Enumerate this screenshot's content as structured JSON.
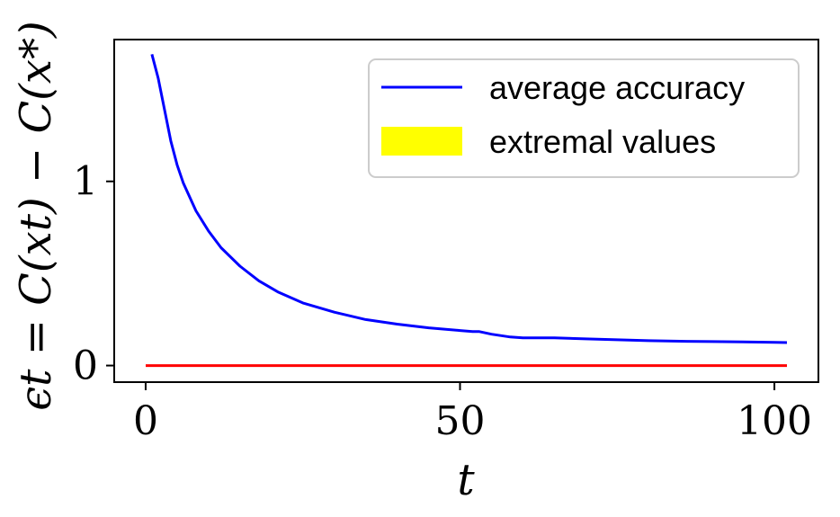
{
  "chart_data": {
    "type": "line",
    "xlabel": "t",
    "ylabel": "ϵt = C(xt) − C(x*)",
    "xlim": [
      -5,
      107
    ],
    "ylim": [
      -0.09,
      1.77
    ],
    "xticks": [
      0,
      50,
      100
    ],
    "xtick_labels": [
      "0",
      "50",
      "100"
    ],
    "yticks": [
      0,
      1
    ],
    "ytick_labels": [
      "0",
      "1"
    ],
    "grid": false,
    "legend_position": "top-right",
    "series": [
      {
        "name": "average accuracy",
        "color": "#0000ff",
        "x": [
          1,
          2,
          3,
          4,
          5,
          6,
          8,
          10,
          12,
          15,
          18,
          21,
          25,
          30,
          35,
          40,
          45,
          50,
          52,
          53,
          55,
          58,
          60,
          65,
          70,
          75,
          80,
          85,
          90,
          95,
          100,
          102
        ],
        "y": [
          1.69,
          1.56,
          1.39,
          1.22,
          1.09,
          0.99,
          0.84,
          0.73,
          0.64,
          0.54,
          0.46,
          0.4,
          0.34,
          0.29,
          0.25,
          0.225,
          0.205,
          0.19,
          0.185,
          0.185,
          0.17,
          0.155,
          0.15,
          0.15,
          0.145,
          0.14,
          0.135,
          0.132,
          0.13,
          0.128,
          0.126,
          0.125
        ]
      },
      {
        "name": "",
        "color": "#ff0000",
        "x": [
          0,
          102
        ],
        "y": [
          0,
          0
        ]
      }
    ],
    "legend": [
      {
        "label": "average accuracy",
        "kind": "line",
        "color": "#0000ff"
      },
      {
        "label": "extremal values",
        "kind": "patch",
        "color": "#ffff00"
      }
    ]
  }
}
